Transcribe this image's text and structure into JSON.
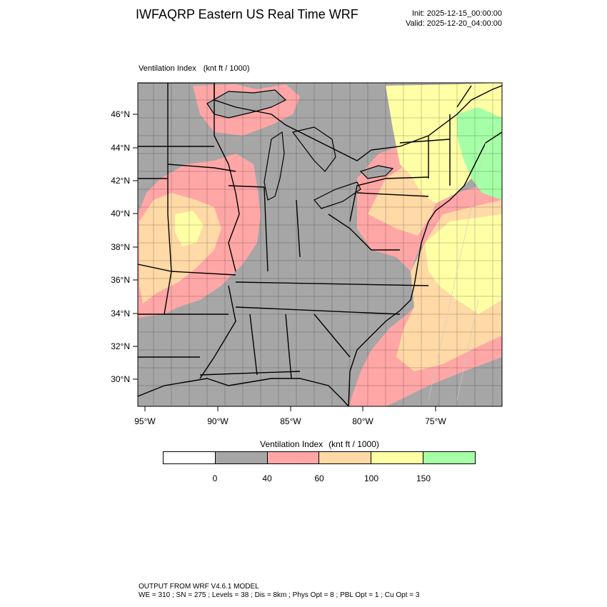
{
  "header": {
    "title": "IWFAQRP Eastern US Real Time WRF",
    "init": "Init: 2025-12-15_00:00:00",
    "valid": "Valid: 2025-12-20_04:00:00"
  },
  "map": {
    "field_label": "Ventilation Index",
    "field_unit": "(knt ft / 1000)",
    "lat_labels": [
      "46°N",
      "44°N",
      "42°N",
      "40°N",
      "38°N",
      "36°N",
      "34°N",
      "32°N",
      "30°N"
    ],
    "lon_labels": [
      "95°W",
      "90°W",
      "85°W",
      "80°W",
      "75°W"
    ],
    "colors": {
      "land_low": "#a6a6a6",
      "band_40_60": "#ffa6a6",
      "band_60_100": "#ffd9a6",
      "band_100_150": "#ffffa6",
      "band_150_up": "#a6ffa6",
      "water": "#a6a6a6"
    }
  },
  "colorbar": {
    "title": "Ventilation Index",
    "unit": "(knt ft / 1000)",
    "colors": [
      "#ffffff",
      "#a6a6a6",
      "#ffa6a6",
      "#ffd9a6",
      "#ffffa6",
      "#a6ffa6"
    ],
    "tick_labels": [
      "0",
      "40",
      "60",
      "100",
      "150"
    ]
  },
  "footer": {
    "line1": "OUTPUT FROM WRF V4.6.1 MODEL",
    "line2": "WE = 310 ; SN = 275 ; Levels = 38 ; Dis = 8km ; Phys Opt = 8 ; PBL Opt = 1 ; Cu Opt = 3"
  }
}
